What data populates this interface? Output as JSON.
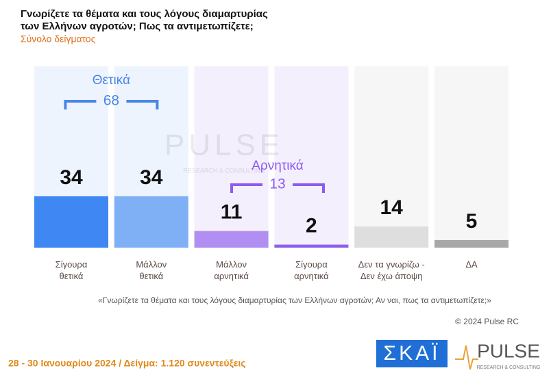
{
  "chart_data": {
    "type": "bar",
    "title": [
      "Γνωρίζετε τα θέματα και τους λόγους διαμαρτυρίας",
      "των Ελλήνων αγροτών; Πως τα αντιμετωπίζετε;"
    ],
    "subtitle": "Σύνολο δείγματος",
    "categories": [
      "Σίγουρα\nθετικά",
      "Μάλλον\nθετικά",
      "Μάλλον\nαρνητικά",
      "Σίγουρα\nαρνητικά",
      "Δεν τα γνωρίζω -\nΔεν έχω άποψη",
      "ΔΑ"
    ],
    "values": [
      34,
      34,
      11,
      2,
      14,
      5
    ],
    "colors": [
      "#3f87f2",
      "#7fb0f6",
      "#b18ef2",
      "#8d5ef0",
      "#dedede",
      "#a8a8a8"
    ],
    "ylim": [
      0,
      120
    ],
    "groups": [
      {
        "label": "Θετικά",
        "total": 68,
        "color": "#4a86e8"
      },
      {
        "label": "Αρνητικά",
        "total": 13,
        "color": "#8a5cf0"
      }
    ],
    "watermark": [
      "PULSE",
      "RESEARCH & CONSULTING"
    ],
    "note": "«Γνωρίζετε τα θέματα και τους λόγους διαμαρτυρίας των Ελλήνων αγροτών; Αν ναι, πως τα αντιμετωπίζετε;»",
    "copyright": "© 2024 Pulse RC",
    "footer": "28 - 30 Ιανουαρίου 2024  /  Δείγμα:  1.120 συνεντεύξεις",
    "logos": [
      "ΣΚΑΪ",
      "PULSE",
      "RESEARCH & CONSULTING"
    ]
  }
}
